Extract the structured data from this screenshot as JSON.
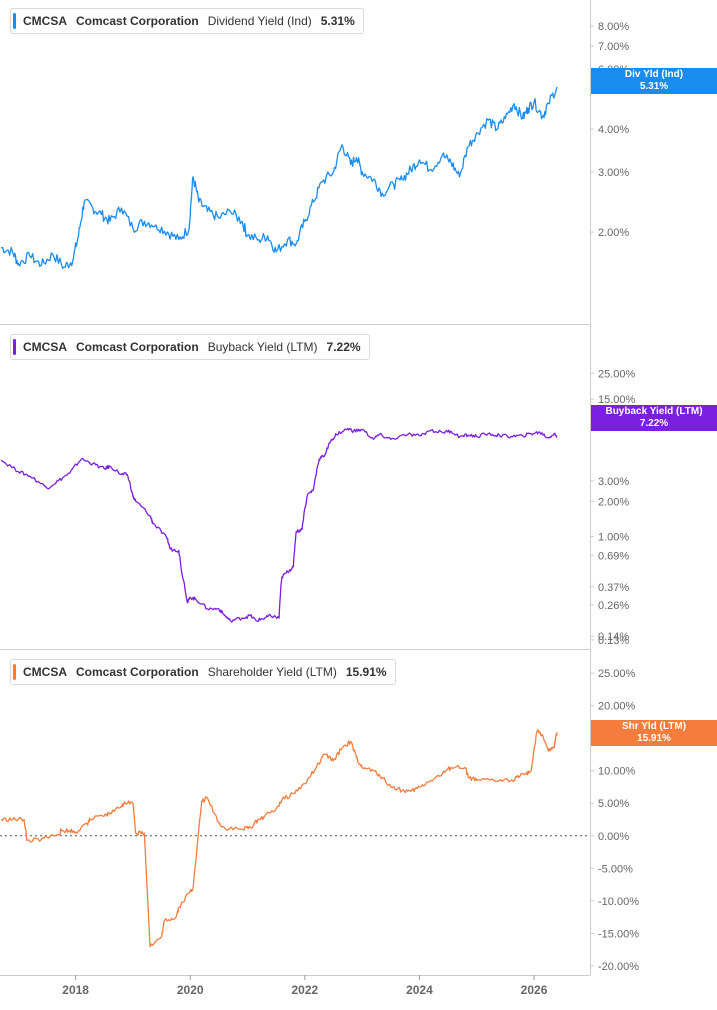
{
  "chart_data": [
    {
      "type": "line",
      "ticker": "CMCSA",
      "company": "Comcast Corporation",
      "metric": "Dividend Yield (Ind)",
      "current_value": "5.31%",
      "flag_label": "Div Yld (Ind)",
      "color": "#1a8cf0",
      "y_scale": "log",
      "ylim": [
        1.3,
        8.8
      ],
      "y_ticks": [
        2,
        3,
        4,
        6,
        7,
        8
      ],
      "y_tick_labels": [
        "2.00%",
        "3.00%",
        "4.00%",
        "6.00%",
        "7.00%",
        "8.00%"
      ],
      "series": [
        {
          "x": [
            2016.7,
            2016.9,
            2017.0,
            2017.2,
            2017.4,
            2017.6,
            2017.8,
            2017.95,
            2018.05,
            2018.15,
            2018.3,
            2018.45,
            2018.6,
            2018.8,
            2019.0,
            2019.2,
            2019.4,
            2019.6,
            2019.8,
            2019.98,
            2020.05,
            2020.15,
            2020.3,
            2020.5,
            2020.7,
            2020.9,
            2021.0,
            2021.2,
            2021.35,
            2021.5,
            2021.7,
            2021.85,
            2022.0,
            2022.15,
            2022.3,
            2022.5,
            2022.65,
            2022.8,
            2022.9,
            2023.0,
            2023.2,
            2023.35,
            2023.55,
            2023.7,
            2023.85,
            2024.0,
            2024.2,
            2024.4,
            2024.55,
            2024.7,
            2024.85,
            2025.0,
            2025.2,
            2025.35,
            2025.5,
            2025.65,
            2025.8,
            2025.9,
            2026.0,
            2026.15,
            2026.25,
            2026.4
          ],
          "y": [
            1.8,
            1.75,
            1.62,
            1.7,
            1.6,
            1.72,
            1.58,
            1.65,
            1.95,
            2.45,
            2.35,
            2.25,
            2.15,
            2.35,
            2.05,
            2.15,
            2.1,
            2.0,
            1.9,
            2.05,
            2.9,
            2.45,
            2.3,
            2.2,
            2.3,
            2.15,
            1.95,
            1.9,
            1.95,
            1.75,
            1.9,
            1.85,
            2.15,
            2.45,
            2.8,
            3.0,
            3.6,
            3.15,
            3.3,
            3.0,
            2.85,
            2.6,
            2.75,
            2.85,
            3.05,
            3.25,
            3.05,
            3.35,
            3.2,
            2.9,
            3.55,
            3.9,
            4.25,
            4.0,
            4.3,
            4.75,
            4.3,
            4.6,
            4.8,
            4.35,
            4.75,
            5.31
          ]
        }
      ]
    },
    {
      "type": "line",
      "ticker": "CMCSA",
      "company": "Comcast Corporation",
      "metric": "Buyback Yield (LTM)",
      "current_value": "7.22%",
      "flag_label": "Buyback Yield (LTM)",
      "color": "#7b1fe0",
      "y_scale": "log",
      "ylim": [
        0.12,
        42
      ],
      "y_ticks": [
        0.13,
        0.14,
        0.26,
        0.37,
        0.69,
        1.0,
        2.0,
        3.0,
        15.0,
        25.0
      ],
      "y_tick_labels": [
        "0.13%",
        "0.14%",
        "0.26%",
        "0.37%",
        "0.69%",
        "1.00%",
        "2.00%",
        "3.00%",
        "15.00%",
        "25.00%"
      ],
      "series": [
        {
          "x": [
            2016.7,
            2017.0,
            2017.2,
            2017.5,
            2017.7,
            2017.9,
            2018.1,
            2018.3,
            2018.5,
            2018.6,
            2018.8,
            2018.9,
            2019.0,
            2019.05,
            2019.3,
            2019.35,
            2019.6,
            2019.65,
            2019.8,
            2019.85,
            2019.95,
            2020.0,
            2020.1,
            2020.3,
            2020.5,
            2020.6,
            2020.7,
            2020.9,
            2021.05,
            2021.15,
            2021.3,
            2021.4,
            2021.55,
            2021.6,
            2021.7,
            2021.8,
            2021.85,
            2021.95,
            2022.05,
            2022.15,
            2022.25,
            2022.35,
            2022.45,
            2022.55,
            2022.75,
            2022.85,
            2023.0,
            2023.2,
            2023.3,
            2023.5,
            2023.8,
            2024.0,
            2024.2,
            2024.4,
            2024.55,
            2024.7,
            2024.85,
            2025.0,
            2025.2,
            2025.4,
            2025.6,
            2025.8,
            2025.95,
            2026.1,
            2026.25,
            2026.35,
            2026.4
          ],
          "y": [
            4.5,
            3.6,
            3.3,
            2.6,
            3.0,
            3.5,
            4.6,
            4.2,
            3.8,
            4.0,
            3.4,
            3.4,
            2.2,
            2.0,
            1.5,
            1.3,
            0.95,
            0.78,
            0.76,
            0.5,
            0.27,
            0.3,
            0.29,
            0.24,
            0.24,
            0.21,
            0.19,
            0.2,
            0.21,
            0.19,
            0.2,
            0.21,
            0.2,
            0.45,
            0.5,
            0.55,
            1.1,
            1.15,
            2.3,
            2.5,
            4.6,
            5.0,
            6.5,
            7.5,
            8.4,
            8.0,
            8.2,
            6.8,
            7.5,
            6.8,
            7.5,
            7.3,
            8.1,
            7.8,
            8.0,
            7.1,
            7.4,
            7.2,
            7.6,
            7.3,
            7.2,
            7.3,
            7.6,
            7.8,
            7.0,
            7.6,
            7.22
          ]
        }
      ]
    },
    {
      "type": "line",
      "ticker": "CMCSA",
      "company": "Comcast Corporation",
      "metric": "Shareholder Yield (LTM)",
      "current_value": "15.91%",
      "flag_label": "Shr Yld (LTM)",
      "color": "#f47d3d",
      "y_scale": "linear",
      "ylim": [
        -20,
        25
      ],
      "zero_line": true,
      "y_ticks": [
        25,
        20,
        15,
        10,
        5,
        0,
        -5,
        -10,
        -15,
        -20
      ],
      "y_tick_labels": [
        "25.00%",
        "20.00%",
        "15.00%",
        "10.00%",
        "5.00%",
        "0.00%",
        "-5.00%",
        "-10.00%",
        "-15.00%",
        "-20.00%"
      ],
      "series": [
        {
          "x": [
            2016.7,
            2016.9,
            2017.1,
            2017.15,
            2017.4,
            2017.5,
            2017.7,
            2017.75,
            2017.9,
            2018.0,
            2018.2,
            2018.25,
            2018.5,
            2018.6,
            2018.8,
            2018.85,
            2019.0,
            2019.05,
            2019.2,
            2019.3,
            2019.5,
            2019.55,
            2019.75,
            2019.8,
            2020.0,
            2020.05,
            2020.2,
            2020.3,
            2020.5,
            2020.6,
            2020.9,
            2021.05,
            2021.2,
            2021.3,
            2021.5,
            2021.6,
            2021.8,
            2022.0,
            2022.2,
            2022.35,
            2022.5,
            2022.65,
            2022.8,
            2022.9,
            2023.0,
            2023.2,
            2023.35,
            2023.5,
            2023.7,
            2023.85,
            2024.0,
            2024.2,
            2024.4,
            2024.55,
            2024.8,
            2024.85,
            2025.0,
            2025.3,
            2025.6,
            2025.7,
            2025.85,
            2025.95,
            2026.05,
            2026.15,
            2026.25,
            2026.35,
            2026.4
          ],
          "y": [
            2.5,
            2.5,
            2.5,
            -0.7,
            -0.6,
            -0.2,
            0.2,
            0.8,
            0.8,
            0.6,
            1.8,
            2.5,
            3.0,
            3.5,
            4.5,
            5.2,
            5.0,
            0.4,
            0.4,
            -17.0,
            -15.5,
            -13.0,
            -12.5,
            -11.0,
            -8.5,
            -8.0,
            5.3,
            5.8,
            2.0,
            1.2,
            1.0,
            1.3,
            2.5,
            3.0,
            4.2,
            5.5,
            6.5,
            8.0,
            10.5,
            12.5,
            11.5,
            13.5,
            14.5,
            12.0,
            10.5,
            10.0,
            9.0,
            7.5,
            7.0,
            6.8,
            7.5,
            8.5,
            9.5,
            10.5,
            10.5,
            9.0,
            8.5,
            8.5,
            8.5,
            9.0,
            9.5,
            10.0,
            16.0,
            15.5,
            13.0,
            13.5,
            15.91
          ]
        }
      ]
    }
  ],
  "x_axis": {
    "ticks": [
      2018,
      2020,
      2022,
      2024,
      2026
    ],
    "labels": [
      "2018",
      "2020",
      "2022",
      "2024",
      "2026"
    ],
    "range": [
      2016.68,
      2026.68
    ]
  }
}
